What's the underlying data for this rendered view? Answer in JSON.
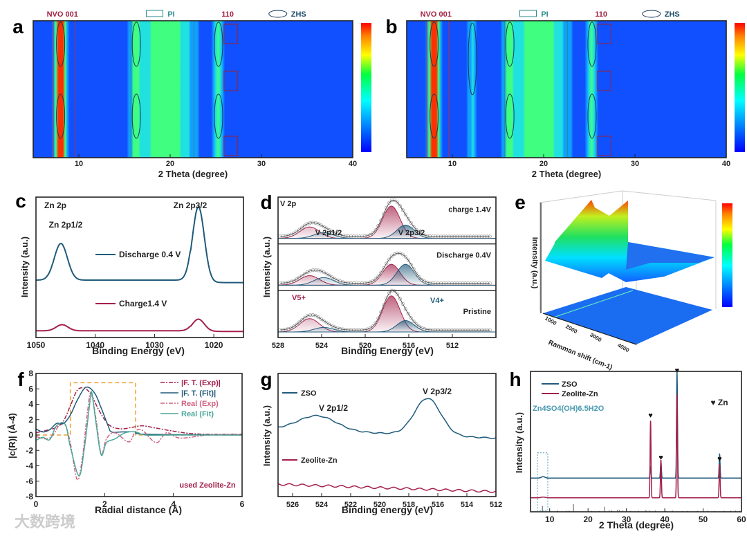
{
  "watermark": "大数跨境",
  "heart": "♥",
  "colors": {
    "blue": "#1f5a7a",
    "red": "#a3204a",
    "pink": "#d0607e",
    "teal": "#4aa79a",
    "orange": "#f0a030"
  },
  "chart_data": [
    {
      "id": "a",
      "type": "heatmap",
      "panel_label": "a",
      "xlabel": "2 Theta (degree)",
      "xlim": [
        5,
        40
      ],
      "xticks": [
        10,
        20,
        30,
        40
      ],
      "annotations": [
        "NVO 001",
        "PI",
        "110",
        "ZHS"
      ],
      "bands": [
        {
          "center": 8.0,
          "strength": 0.9
        },
        {
          "center": 16.3,
          "strength": 0.35
        },
        {
          "center": 19.5,
          "strength": 0.45
        },
        {
          "center": 25.3,
          "strength": 0.35
        }
      ]
    },
    {
      "id": "b",
      "type": "heatmap",
      "panel_label": "b",
      "xlabel": "2 Theta (degree)",
      "xlim": [
        5,
        40
      ],
      "xticks": [
        10,
        20,
        30,
        40
      ],
      "annotations": [
        "NVO 001",
        "PI",
        "110",
        "ZHS"
      ],
      "bands": [
        {
          "center": 8.0,
          "strength": 1.0
        },
        {
          "center": 12.2,
          "strength": 0.2
        },
        {
          "center": 16.3,
          "strength": 0.35
        },
        {
          "center": 19.5,
          "strength": 0.45
        },
        {
          "center": 25.3,
          "strength": 0.35
        }
      ]
    },
    {
      "id": "c",
      "type": "line",
      "panel_label": "c",
      "title": "Zn 2p",
      "xlabel": "Binding Energy (eV)",
      "ylabel": "Intensity (a.u.)",
      "xlim": [
        1050,
        1015
      ],
      "xticks": [
        1050,
        1040,
        1030,
        1020
      ],
      "annotations": [
        "Zn 2p1/2",
        "Zn 2p3/2"
      ],
      "series": [
        {
          "name": "Discharge 0.4 V",
          "offset": 0.45,
          "peaks": [
            [
              1045.8,
              0.3,
              1.1
            ],
            [
              1022.6,
              0.62,
              1.0
            ]
          ]
        },
        {
          "name": "Charge1.4 V",
          "offset": 0.05,
          "peaks": [
            [
              1045.6,
              0.05,
              1.0
            ],
            [
              1022.6,
              0.1,
              1.0
            ]
          ]
        }
      ]
    },
    {
      "id": "d",
      "type": "line",
      "panel_label": "d",
      "title": "V 2p",
      "xlabel": "Binding Energy (eV)",
      "ylabel": "Intensity (a.u.)",
      "xlim": [
        528,
        508
      ],
      "xticks": [
        528,
        524,
        520,
        516,
        512
      ],
      "annotations": [
        "V 2p1/2",
        "V 2p3/2",
        "V5+",
        "V4+"
      ],
      "series": [
        {
          "name": "charge 1.4V",
          "v5": [
            0.85,
            0.3
          ],
          "v4": [
            0.35,
            0.15
          ]
        },
        {
          "name": "Discharge 0.4V",
          "v5": [
            0.55,
            0.25
          ],
          "v4": [
            0.55,
            0.2
          ]
        },
        {
          "name": "Pristine",
          "v5": [
            0.95,
            0.35
          ],
          "v4": [
            0.3,
            0.12
          ]
        }
      ]
    },
    {
      "id": "e",
      "type": "surface",
      "panel_label": "e",
      "xlabel": "Ramman shift (cm-1)",
      "ylabel": "Intensity (a.u.)",
      "xticks": [
        "1000",
        "2000",
        "3000",
        "4000"
      ]
    },
    {
      "id": "f",
      "type": "line",
      "panel_label": "f",
      "xlabel": "Radial distance (Å)",
      "ylabel": "|c(R)|  (Å-4)",
      "xlim": [
        0,
        6
      ],
      "ylim": [
        -8,
        8
      ],
      "xticks": [
        0,
        2,
        4,
        6
      ],
      "yticks": [
        -8,
        -6,
        -4,
        -2,
        0,
        2,
        4,
        6,
        8
      ],
      "annotation": "used Zeolite-Zn",
      "series": [
        {
          "name": "|F. T. (Exp)|",
          "points": [
            [
              0,
              0.3
            ],
            [
              0.3,
              0.6
            ],
            [
              0.6,
              1
            ],
            [
              0.8,
              1.8
            ],
            [
              1.0,
              3.8
            ],
            [
              1.2,
              5.8
            ],
            [
              1.4,
              6.1
            ],
            [
              1.6,
              5.3
            ],
            [
              1.8,
              3.5
            ],
            [
              2.0,
              2
            ],
            [
              2.2,
              1.1
            ],
            [
              2.5,
              0.8
            ],
            [
              2.8,
              1.0
            ],
            [
              3.1,
              1.2
            ],
            [
              3.5,
              0.9
            ],
            [
              4,
              0.5
            ],
            [
              4.5,
              0.2
            ],
            [
              5,
              0.1
            ],
            [
              6,
              0.1
            ]
          ]
        },
        {
          "name": "|F. T. (Fit)|",
          "points": [
            [
              0,
              0.8
            ],
            [
              0.2,
              0.4
            ],
            [
              0.4,
              0.7
            ],
            [
              0.6,
              1.5
            ],
            [
              0.8,
              1.5
            ],
            [
              1.0,
              2.6
            ],
            [
              1.2,
              4.5
            ],
            [
              1.45,
              6.2
            ],
            [
              1.7,
              5.5
            ],
            [
              1.9,
              3.5
            ],
            [
              2.1,
              1.2
            ],
            [
              2.2,
              0.4
            ],
            [
              2.5,
              0.4
            ],
            [
              2.9,
              0.4
            ],
            [
              3.2,
              0.1
            ],
            [
              6,
              0
            ]
          ]
        },
        {
          "name": "Real (Exp)",
          "points": [
            [
              0,
              -0.2
            ],
            [
              0.3,
              -0.5
            ],
            [
              0.5,
              0
            ],
            [
              0.7,
              1.5
            ],
            [
              0.85,
              1.3
            ],
            [
              1.0,
              -1
            ],
            [
              1.2,
              -5.8
            ],
            [
              1.35,
              -3
            ],
            [
              1.5,
              3
            ],
            [
              1.6,
              5.5
            ],
            [
              1.75,
              2
            ],
            [
              1.9,
              -2.5
            ],
            [
              2.05,
              -0.5
            ],
            [
              2.3,
              0.3
            ],
            [
              2.7,
              -0.9
            ],
            [
              2.9,
              0.5
            ],
            [
              3.1,
              0.6
            ],
            [
              3.5,
              -1.0
            ],
            [
              3.8,
              0.3
            ],
            [
              4.2,
              -0.4
            ],
            [
              5,
              0
            ],
            [
              6,
              0.1
            ]
          ]
        },
        {
          "name": "Real (Fit)",
          "points": [
            [
              0,
              -0.7
            ],
            [
              0.2,
              -0.3
            ],
            [
              0.4,
              -0.6
            ],
            [
              0.6,
              1.2
            ],
            [
              0.85,
              1.4
            ],
            [
              1.0,
              -1.5
            ],
            [
              1.25,
              -5.3
            ],
            [
              1.4,
              -2
            ],
            [
              1.55,
              3.5
            ],
            [
              1.62,
              5.6
            ],
            [
              1.75,
              1.5
            ],
            [
              1.9,
              -2.6
            ],
            [
              2.05,
              -1
            ],
            [
              2.3,
              -0.5
            ],
            [
              2.6,
              0.3
            ],
            [
              2.9,
              0.4
            ],
            [
              3.2,
              0
            ],
            [
              4,
              0
            ],
            [
              6,
              0
            ]
          ]
        }
      ],
      "window": [
        1.0,
        2.9
      ]
    },
    {
      "id": "g",
      "type": "line",
      "panel_label": "g",
      "xlabel": "Binding energy (eV)",
      "ylabel": "Intensity (a.u.)",
      "xlim": [
        527,
        512
      ],
      "xticks": [
        526,
        524,
        522,
        520,
        518,
        516,
        514,
        512
      ],
      "annotations": [
        "V 2p1/2",
        "V 2p3/2"
      ],
      "series": [
        {
          "name": "ZSO",
          "offset": 0.55,
          "peaks": [
            [
              524.3,
              0.12,
              1.3
            ],
            [
              516.7,
              0.3,
              0.9
            ]
          ]
        },
        {
          "name": "Zeolite-Zn",
          "offset": 0.1,
          "peaks": []
        }
      ]
    },
    {
      "id": "h",
      "type": "line",
      "panel_label": "h",
      "xlabel": "2 Theta (degree)",
      "ylabel": "Intensity (a.u.)",
      "xlim": [
        5,
        60
      ],
      "xticks": [
        10,
        20,
        30,
        40,
        50,
        60
      ],
      "annotations": [
        "Zn4SO4(OH)6.5H2O",
        "♥ Zn"
      ],
      "series": [
        {
          "name": "ZSO",
          "offset": 0.24,
          "peaks": [
            [
              8.3,
              0.01,
              0.5
            ],
            [
              36.3,
              0.08,
              0.12
            ],
            [
              39.0,
              0.12,
              0.12
            ],
            [
              43.2,
              0.76,
              0.12
            ],
            [
              54.3,
              0.17,
              0.12
            ]
          ]
        },
        {
          "name": "Zeolite-Zn",
          "offset": 0.1,
          "peaks": [
            [
              8.3,
              0.005,
              0.5
            ],
            [
              36.3,
              0.55,
              0.12
            ],
            [
              39.0,
              0.27,
              0.12
            ],
            [
              43.2,
              0.74,
              0.12
            ],
            [
              54.3,
              0.24,
              0.12
            ]
          ]
        }
      ],
      "zn_peaks": [
        36.3,
        39.0,
        43.2,
        54.3
      ],
      "reference_sticks": [
        [
          8.1,
          0.35
        ],
        [
          16.2,
          0.45
        ],
        [
          12.1,
          0.08
        ],
        [
          14.3,
          0.06
        ],
        [
          15.1,
          0.07
        ],
        [
          20.8,
          0.06
        ],
        [
          22.9,
          0.05
        ],
        [
          24.3,
          0.3
        ],
        [
          25.5,
          0.08
        ],
        [
          26.2,
          0.08
        ],
        [
          27.7,
          0.12
        ],
        [
          28.2,
          0.1
        ],
        [
          29.1,
          0.08
        ],
        [
          31,
          0.06
        ],
        [
          33.2,
          0.06
        ],
        [
          35.1,
          0.1
        ],
        [
          36,
          0.08
        ],
        [
          37.5,
          0.07
        ],
        [
          40.2,
          0.06
        ],
        [
          42,
          0.07
        ],
        [
          44.5,
          0.05
        ],
        [
          46,
          0.06
        ],
        [
          48.5,
          0.06
        ],
        [
          50,
          0.08
        ],
        [
          51.2,
          0.07
        ],
        [
          53,
          0.05
        ],
        [
          55.5,
          0.06
        ],
        [
          57.2,
          0.06
        ],
        [
          58.5,
          0.07
        ],
        [
          59.5,
          0.06
        ]
      ]
    }
  ]
}
